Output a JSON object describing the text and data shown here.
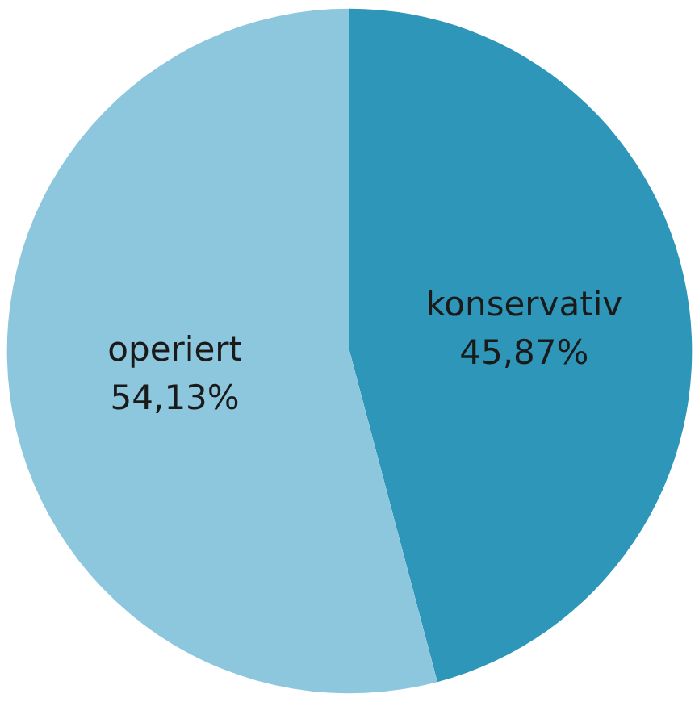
{
  "chart_data": {
    "type": "pie",
    "categories": [
      "konservativ",
      "operiert"
    ],
    "values": [
      45.87,
      54.13
    ],
    "colors": [
      "#2e96b8",
      "#8dc7dd"
    ],
    "value_labels": [
      "45,87%",
      "54,13%"
    ],
    "legend": false
  }
}
